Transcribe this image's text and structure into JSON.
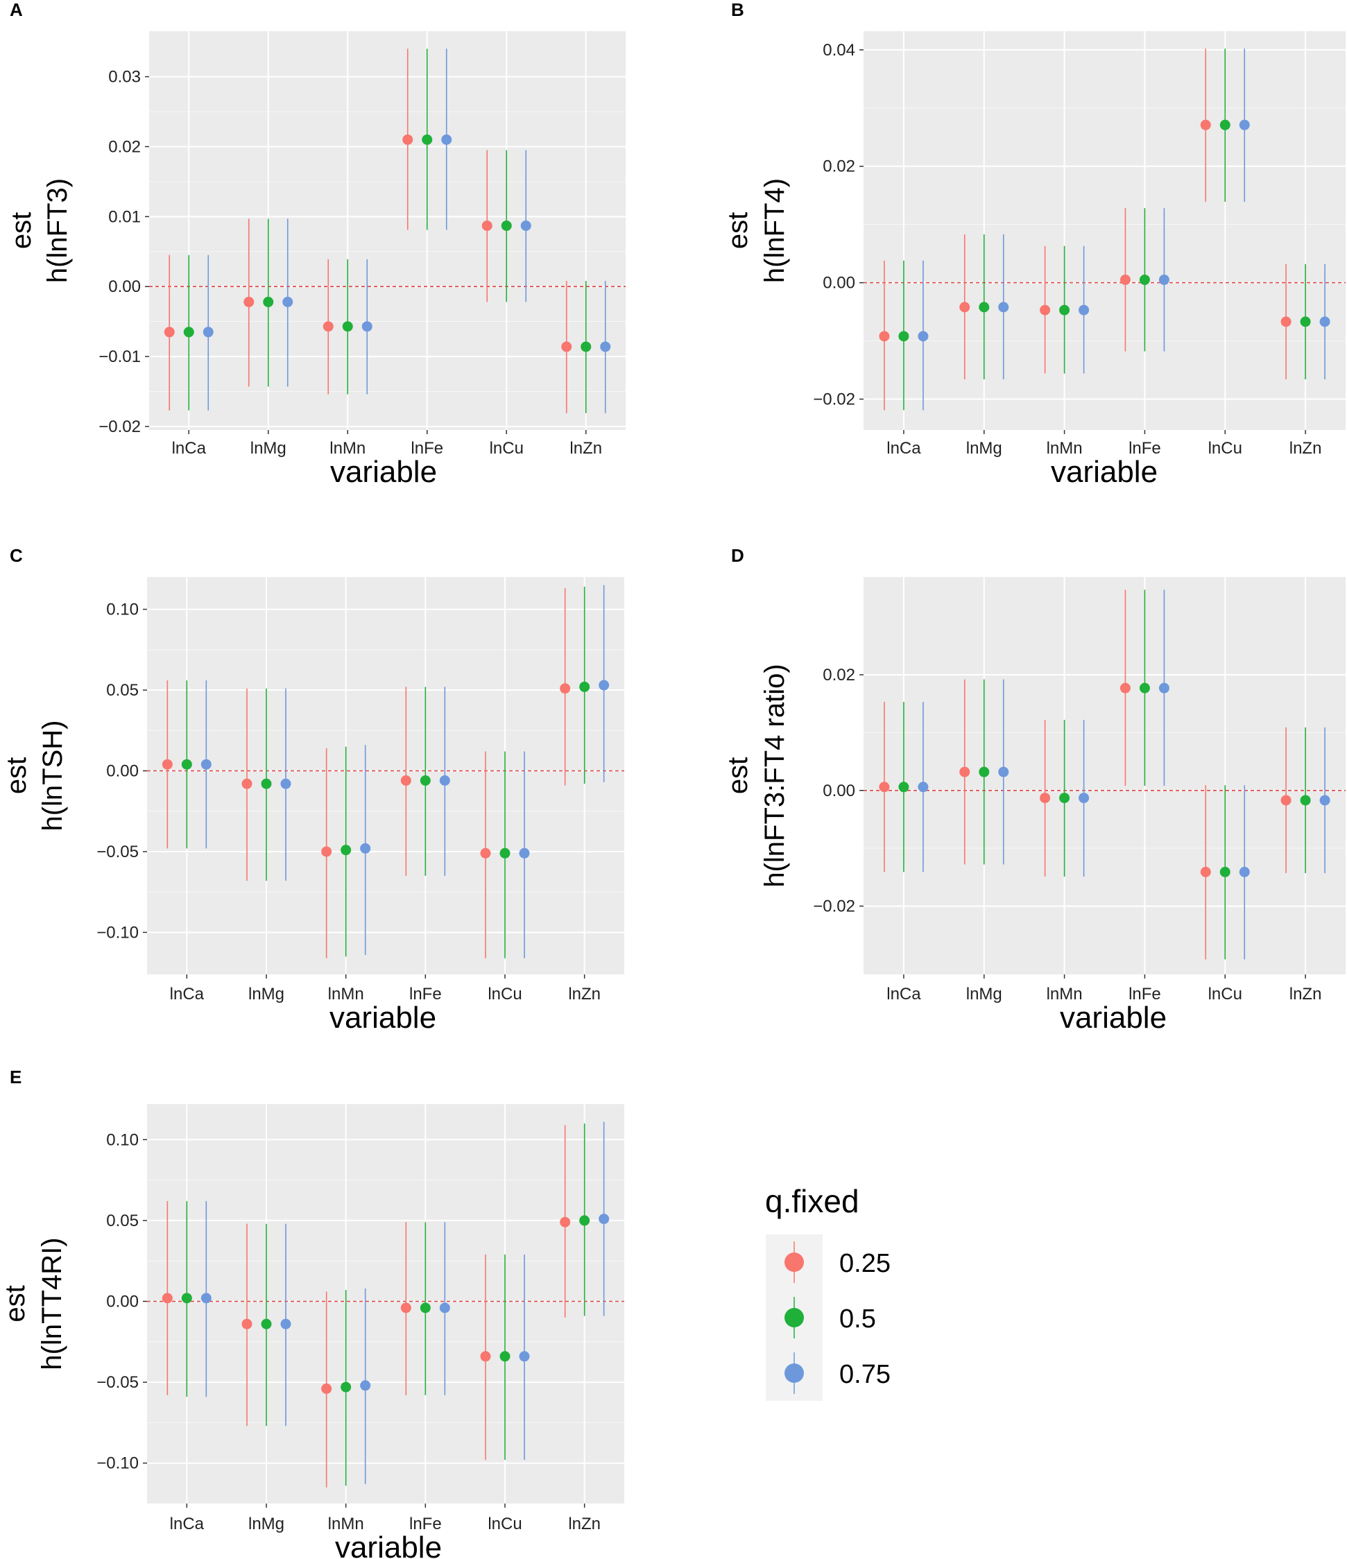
{
  "colors": {
    "0.25": "#F8766D",
    "0.5": "#1FB03A",
    "0.75": "#6E98DC",
    "panel_bg": "#EBEBEB",
    "grid": "#FFFFFF",
    "ref_line": "#E04040"
  },
  "legend": {
    "title": "q.fixed",
    "entries": [
      "0.25",
      "0.5",
      "0.75"
    ]
  },
  "chart_data": [
    {
      "id": "A",
      "letter": "A",
      "type": "scatter",
      "xlabel": "variable",
      "ylabel_line1": "est",
      "ylabel_line2": "h(lnFT3)",
      "categories": [
        "lnCa",
        "lnMg",
        "lnMn",
        "lnFe",
        "lnCu",
        "lnZn"
      ],
      "ylim": [
        -0.0205,
        0.0365
      ],
      "yticks": [
        -0.02,
        -0.01,
        0.0,
        0.01,
        0.02,
        0.03
      ],
      "ytick_labels": [
        "−0.02",
        "−0.01",
        "0.00",
        "0.01",
        "0.02",
        "0.03"
      ],
      "series": [
        {
          "name": "0.25",
          "est": [
            -0.0065,
            -0.0022,
            -0.0057,
            0.021,
            0.0087,
            -0.0086
          ],
          "lower": [
            -0.0177,
            -0.0143,
            -0.0154,
            0.0081,
            -0.0022,
            -0.0181
          ],
          "upper": [
            0.0045,
            0.0097,
            0.0039,
            0.034,
            0.0195,
            0.0008
          ]
        },
        {
          "name": "0.5",
          "est": [
            -0.0065,
            -0.0022,
            -0.0057,
            0.021,
            0.0087,
            -0.0086
          ],
          "lower": [
            -0.0177,
            -0.0143,
            -0.0154,
            0.0081,
            -0.0022,
            -0.0181
          ],
          "upper": [
            0.0045,
            0.0097,
            0.0039,
            0.034,
            0.0195,
            0.0008
          ]
        },
        {
          "name": "0.75",
          "est": [
            -0.0065,
            -0.0022,
            -0.0057,
            0.021,
            0.0087,
            -0.0086
          ],
          "lower": [
            -0.0177,
            -0.0143,
            -0.0154,
            0.0081,
            -0.0022,
            -0.0181
          ],
          "upper": [
            0.0045,
            0.0097,
            0.0039,
            0.034,
            0.0195,
            0.0008
          ]
        }
      ]
    },
    {
      "id": "B",
      "letter": "B",
      "type": "scatter",
      "xlabel": "variable",
      "ylabel_line1": "est",
      "ylabel_line2": "h(lnFT4)",
      "categories": [
        "lnCa",
        "lnMg",
        "lnMn",
        "lnFe",
        "lnCu",
        "lnZn"
      ],
      "ylim": [
        -0.0253,
        0.0432
      ],
      "yticks": [
        -0.02,
        0.0,
        0.02,
        0.04
      ],
      "ytick_labels": [
        "−0.02",
        "0.00",
        "0.02",
        "0.04"
      ],
      "series": [
        {
          "name": "0.25",
          "est": [
            -0.0092,
            -0.0042,
            -0.0047,
            0.0005,
            0.0271,
            -0.0067
          ],
          "lower": [
            -0.0219,
            -0.0166,
            -0.0156,
            -0.0118,
            0.0139,
            -0.0166
          ],
          "upper": [
            0.0038,
            0.0083,
            0.0063,
            0.0128,
            0.0402,
            0.0032
          ]
        },
        {
          "name": "0.5",
          "est": [
            -0.0092,
            -0.0042,
            -0.0047,
            0.0005,
            0.0271,
            -0.0067
          ],
          "lower": [
            -0.0219,
            -0.0166,
            -0.0156,
            -0.0118,
            0.0139,
            -0.0166
          ],
          "upper": [
            0.0038,
            0.0083,
            0.0063,
            0.0128,
            0.0402,
            0.0032
          ]
        },
        {
          "name": "0.75",
          "est": [
            -0.0092,
            -0.0042,
            -0.0047,
            0.0005,
            0.0271,
            -0.0067
          ],
          "lower": [
            -0.0219,
            -0.0166,
            -0.0156,
            -0.0118,
            0.0139,
            -0.0166
          ],
          "upper": [
            0.0038,
            0.0083,
            0.0063,
            0.0128,
            0.0402,
            0.0032
          ]
        }
      ]
    },
    {
      "id": "C",
      "letter": "C",
      "type": "scatter",
      "xlabel": "variable",
      "ylabel_line1": "est",
      "ylabel_line2": "h(lnTSH)",
      "categories": [
        "lnCa",
        "lnMg",
        "lnMn",
        "lnFe",
        "lnCu",
        "lnZn"
      ],
      "ylim": [
        -0.126,
        0.12
      ],
      "yticks": [
        -0.1,
        -0.05,
        0.0,
        0.05,
        0.1
      ],
      "ytick_labels": [
        "−0.10",
        "−0.05",
        "0.00",
        "0.05",
        "0.10"
      ],
      "series": [
        {
          "name": "0.25",
          "est": [
            0.004,
            -0.008,
            -0.05,
            -0.006,
            -0.051,
            0.051
          ],
          "lower": [
            -0.048,
            -0.068,
            -0.116,
            -0.065,
            -0.116,
            -0.009
          ],
          "upper": [
            0.056,
            0.051,
            0.014,
            0.052,
            0.012,
            0.113
          ]
        },
        {
          "name": "0.5",
          "est": [
            0.004,
            -0.008,
            -0.049,
            -0.006,
            -0.051,
            0.052
          ],
          "lower": [
            -0.048,
            -0.068,
            -0.115,
            -0.065,
            -0.116,
            -0.008
          ],
          "upper": [
            0.056,
            0.051,
            0.015,
            0.052,
            0.012,
            0.114
          ]
        },
        {
          "name": "0.75",
          "est": [
            0.004,
            -0.008,
            -0.048,
            -0.006,
            -0.051,
            0.053
          ],
          "lower": [
            -0.048,
            -0.068,
            -0.114,
            -0.065,
            -0.116,
            -0.007
          ],
          "upper": [
            0.056,
            0.051,
            0.016,
            0.052,
            0.012,
            0.115
          ]
        }
      ]
    },
    {
      "id": "D",
      "letter": "D",
      "type": "scatter",
      "xlabel": "variable",
      "ylabel_line1": "est",
      "ylabel_line2": "h(lnFT3:FT4 ratio)",
      "categories": [
        "lnCa",
        "lnMg",
        "lnMn",
        "lnFe",
        "lnCu",
        "lnZn"
      ],
      "ylim": [
        -0.0318,
        0.0369
      ],
      "yticks": [
        -0.02,
        0.0,
        0.02
      ],
      "ytick_labels": [
        "−0.02",
        "0.00",
        "0.02"
      ],
      "series": [
        {
          "name": "0.25",
          "est": [
            0.0006,
            0.0032,
            -0.0013,
            0.0177,
            -0.0141,
            -0.0017
          ],
          "lower": [
            -0.0141,
            -0.0128,
            -0.0149,
            0.0008,
            -0.0292,
            -0.0143
          ],
          "upper": [
            0.0153,
            0.0192,
            0.0122,
            0.0347,
            0.0009,
            0.0109
          ]
        },
        {
          "name": "0.5",
          "est": [
            0.0006,
            0.0032,
            -0.0013,
            0.0177,
            -0.0141,
            -0.0017
          ],
          "lower": [
            -0.0141,
            -0.0128,
            -0.0149,
            0.0008,
            -0.0292,
            -0.0143
          ],
          "upper": [
            0.0153,
            0.0192,
            0.0122,
            0.0347,
            0.0009,
            0.0109
          ]
        },
        {
          "name": "0.75",
          "est": [
            0.0006,
            0.0032,
            -0.0013,
            0.0177,
            -0.0141,
            -0.0017
          ],
          "lower": [
            -0.0141,
            -0.0128,
            -0.0149,
            0.0008,
            -0.0292,
            -0.0143
          ],
          "upper": [
            0.0153,
            0.0192,
            0.0122,
            0.0347,
            0.0009,
            0.0109
          ]
        }
      ]
    },
    {
      "id": "E",
      "letter": "E",
      "type": "scatter",
      "xlabel": "variable",
      "ylabel_line1": "est",
      "ylabel_line2": "h(lnTT4RI)",
      "categories": [
        "lnCa",
        "lnMg",
        "lnMn",
        "lnFe",
        "lnCu",
        "lnZn"
      ],
      "ylim": [
        -0.125,
        0.122
      ],
      "yticks": [
        -0.1,
        -0.05,
        0.0,
        0.05,
        0.1
      ],
      "ytick_labels": [
        "−0.10",
        "−0.05",
        "0.00",
        "0.05",
        "0.10"
      ],
      "series": [
        {
          "name": "0.25",
          "est": [
            0.002,
            -0.014,
            -0.054,
            -0.004,
            -0.034,
            0.049
          ],
          "lower": [
            -0.058,
            -0.077,
            -0.115,
            -0.058,
            -0.098,
            -0.01
          ],
          "upper": [
            0.062,
            0.048,
            0.006,
            0.049,
            0.029,
            0.109
          ]
        },
        {
          "name": "0.5",
          "est": [
            0.002,
            -0.014,
            -0.053,
            -0.004,
            -0.034,
            0.05
          ],
          "lower": [
            -0.059,
            -0.077,
            -0.114,
            -0.058,
            -0.098,
            -0.009
          ],
          "upper": [
            0.062,
            0.048,
            0.007,
            0.049,
            0.029,
            0.11
          ]
        },
        {
          "name": "0.75",
          "est": [
            0.002,
            -0.014,
            -0.052,
            -0.004,
            -0.034,
            0.051
          ],
          "lower": [
            -0.059,
            -0.077,
            -0.113,
            -0.058,
            -0.098,
            -0.009
          ],
          "upper": [
            0.062,
            0.048,
            0.008,
            0.049,
            0.029,
            0.111
          ]
        }
      ]
    }
  ]
}
